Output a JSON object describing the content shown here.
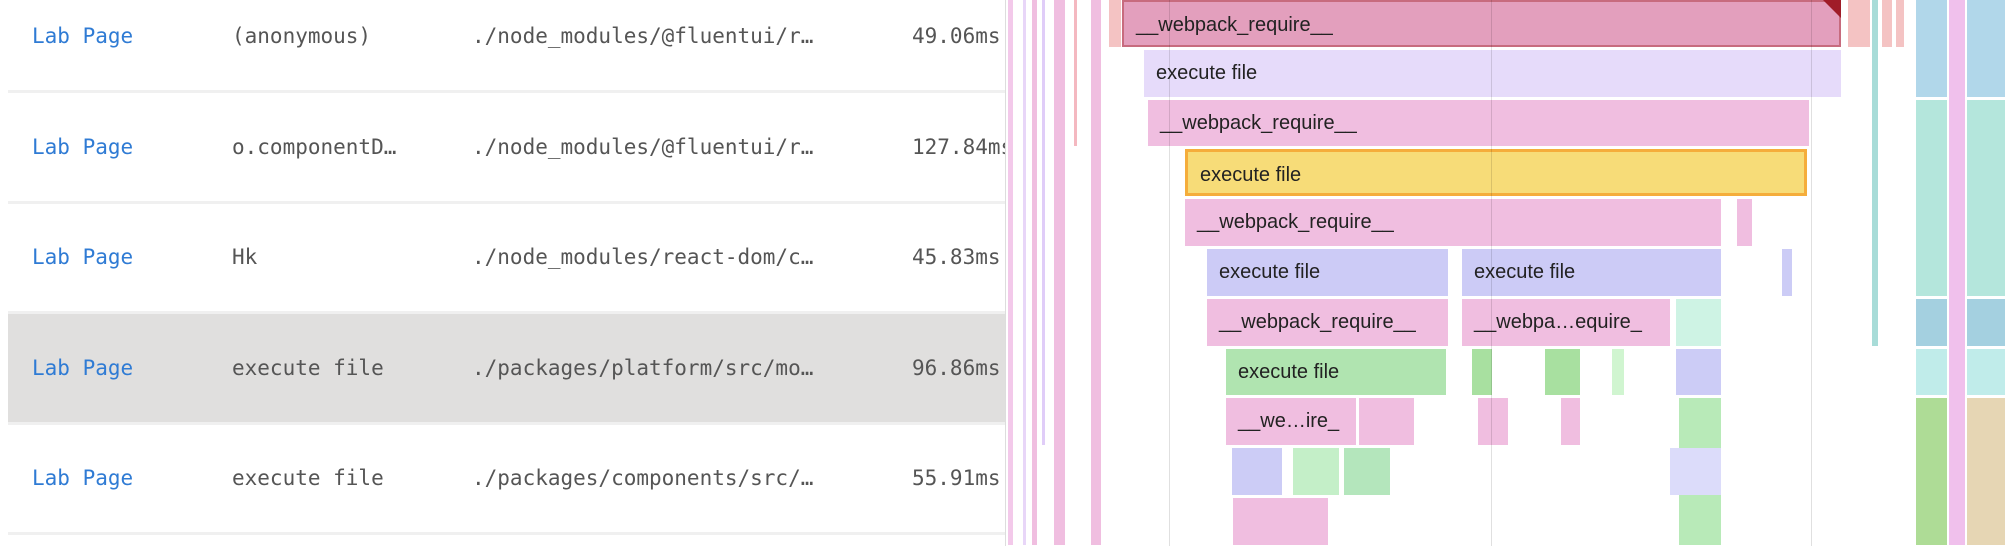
{
  "table": {
    "rows": [
      {
        "page": "Lab Page",
        "function": "(anonymous)",
        "file": "./node_modules/@fluentui/r…",
        "time": "49.06ms",
        "selected": false
      },
      {
        "page": "Lab Page",
        "function": "o.componentD…",
        "file": "./node_modules/@fluentui/r…",
        "time": "127.84ms",
        "selected": false
      },
      {
        "page": "Lab Page",
        "function": "Hk",
        "file": "./node_modules/react-dom/c…",
        "time": "45.83ms",
        "selected": false
      },
      {
        "page": "Lab Page",
        "function": "execute file",
        "file": "./packages/platform/src/mo…",
        "time": "96.86ms",
        "selected": true
      },
      {
        "page": "Lab Page",
        "function": "execute file",
        "file": "./packages/components/src/…",
        "time": "55.91ms",
        "selected": false
      }
    ]
  },
  "flame": {
    "colors": {
      "require": "#f0bee0",
      "require_selected": "#e39fbd",
      "execute_purple": "#e6dbfa",
      "execute_selected": "#f7dc78",
      "execute_blue": "#cccbf6",
      "execute_green": "#b0e4b0",
      "highlight_border": "#f5ad3b",
      "marker": "#a01c28"
    },
    "bars": [
      {
        "label": "__webpack_require__"
      },
      {
        "label": "execute file"
      },
      {
        "label": "__webpack_require__"
      },
      {
        "label": "execute file"
      },
      {
        "label": "__webpack_require__"
      },
      {
        "label": "execute file"
      },
      {
        "label": "execute file"
      },
      {
        "label": "__webpack_require__"
      },
      {
        "label": "__webpa…equire_"
      },
      {
        "label": "execute file"
      },
      {
        "label": "__we…ire_"
      }
    ]
  }
}
